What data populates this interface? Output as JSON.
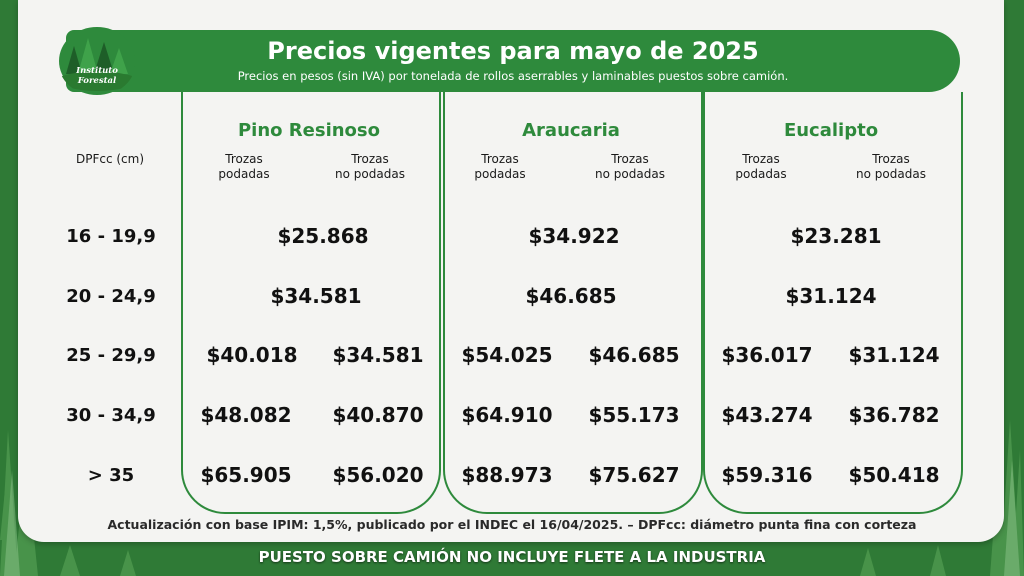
{
  "header": {
    "title": "Precios vigentes para mayo de 2025",
    "subtitle": "Precios en pesos (sin IVA) por tonelada de rollos aserrables y laminables puestos sobre camión."
  },
  "logo": {
    "text": "Instituto Forestal",
    "icon": "forest-logo-icon"
  },
  "table": {
    "dpf_header": "DPFcc (cm)",
    "species": [
      {
        "name": "Pino Resinoso",
        "sub_left": [
          "Trozas",
          "podadas"
        ],
        "sub_right": [
          "Trozas",
          "no podadas"
        ]
      },
      {
        "name": "Araucaria",
        "sub_left": [
          "Trozas",
          "podadas"
        ],
        "sub_right": [
          "Trozas",
          "no podadas"
        ]
      },
      {
        "name": "Eucalipto",
        "sub_left": [
          "Trozas",
          "podadas"
        ],
        "sub_right": [
          "Trozas",
          "no podadas"
        ]
      }
    ],
    "rows": [
      {
        "range": "16 - 19,9",
        "merged": true,
        "prices": [
          [
            "$25.868"
          ],
          [
            "$34.922"
          ],
          [
            "$23.281"
          ]
        ]
      },
      {
        "range": "20 - 24,9",
        "merged": true,
        "prices": [
          [
            "$34.581"
          ],
          [
            "$46.685"
          ],
          [
            "$31.124"
          ]
        ]
      },
      {
        "range": "25 - 29,9",
        "merged": false,
        "prices": [
          [
            "$40.018",
            "$34.581"
          ],
          [
            "$54.025",
            "$46.685"
          ],
          [
            "$36.017",
            "$31.124"
          ]
        ]
      },
      {
        "range": "30 - 34,9",
        "merged": false,
        "prices": [
          [
            "$48.082",
            "$40.870"
          ],
          [
            "$64.910",
            "$55.173"
          ],
          [
            "$43.274",
            "$36.782"
          ]
        ]
      },
      {
        "range": "> 35",
        "merged": false,
        "prices": [
          [
            "$65.905",
            "$56.020"
          ],
          [
            "$88.973",
            "$75.627"
          ],
          [
            "$59.316",
            "$50.418"
          ]
        ]
      }
    ]
  },
  "footnote": "Actualización con base IPIM: 1,5%, publicado por el INDEC el 16/04/2025.  –  DPFcc: diámetro punta fina con corteza",
  "bottom_banner": "PUESTO SOBRE CAMIÓN NO INCLUYE FLETE A LA INDUSTRIA",
  "colors": {
    "accent": "#2e8a3c",
    "card": "#f4f4f2",
    "background": "#2f7a36"
  }
}
